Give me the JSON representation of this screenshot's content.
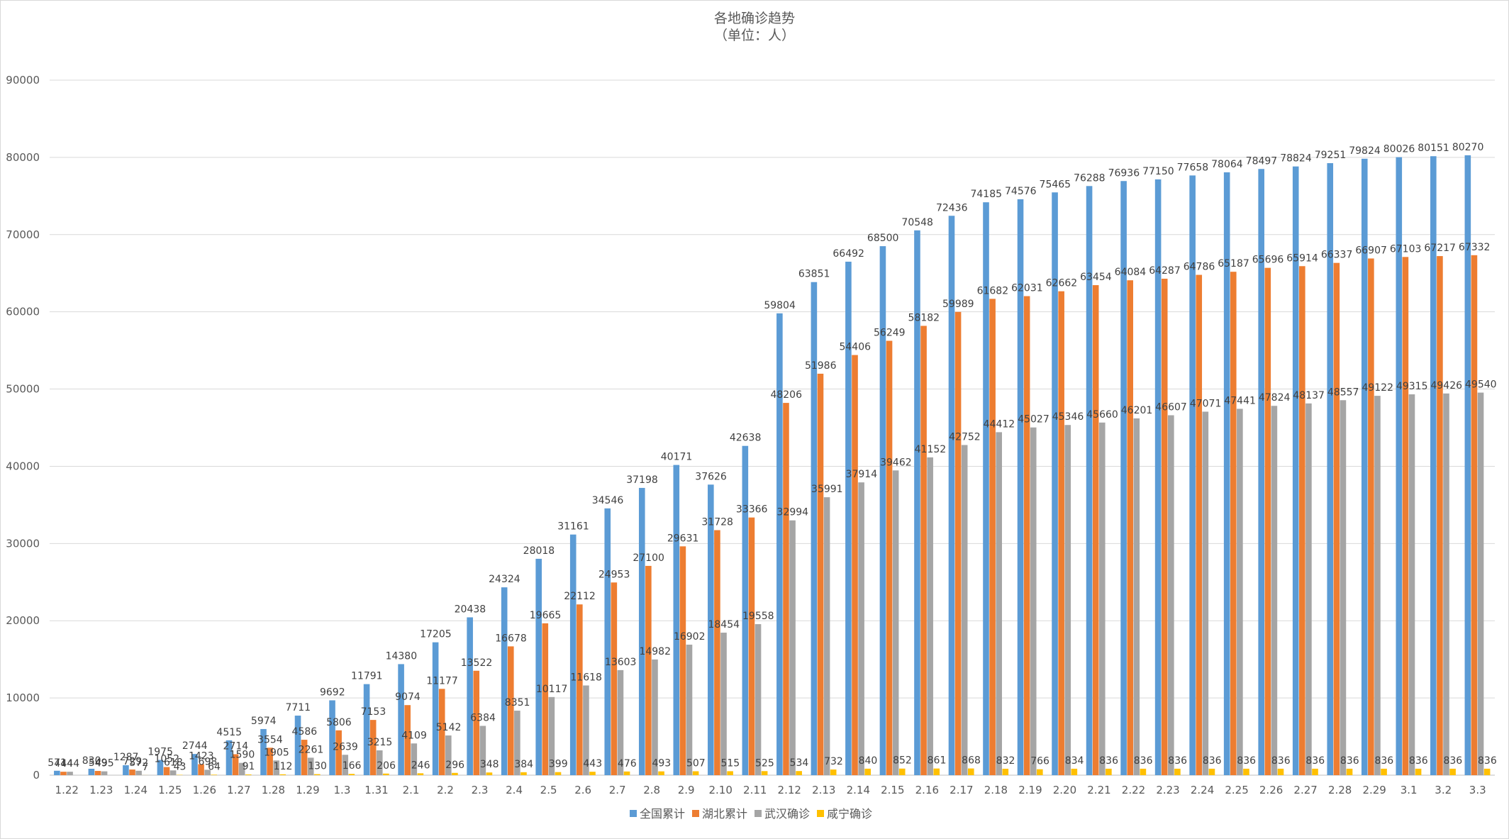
{
  "chart_data": {
    "type": "bar",
    "title": "各地确诊趋势",
    "subtitle": "（单位：人）",
    "ylim": [
      0,
      90000
    ],
    "yticks": [
      0,
      10000,
      20000,
      30000,
      40000,
      50000,
      60000,
      70000,
      80000,
      90000
    ],
    "grid": true,
    "legend_position": "bottom",
    "categories": [
      "1.22",
      "1.23",
      "1.24",
      "1.25",
      "1.26",
      "1.27",
      "1.28",
      "1.29",
      "1.3",
      "1.31",
      "2.1",
      "2.2",
      "2.3",
      "2.4",
      "2.5",
      "2.6",
      "2.7",
      "2.8",
      "2.9",
      "2.10",
      "2.11",
      "2.12",
      "2.13",
      "2.14",
      "2.15",
      "2.16",
      "2.17",
      "2.18",
      "2.19",
      "2.20",
      "2.21",
      "2.22",
      "2.23",
      "2.24",
      "2.25",
      "2.26",
      "2.27",
      "2.28",
      "2.29",
      "3.1",
      "3.2",
      "3.3"
    ],
    "series": [
      {
        "name": "全国累计",
        "color": "#5B9BD5",
        "values": [
          571,
          830,
          1287,
          1975,
          2744,
          4515,
          5974,
          7711,
          9692,
          11791,
          14380,
          17205,
          20438,
          24324,
          28018,
          31161,
          34546,
          37198,
          40171,
          37626,
          42638,
          59804,
          63851,
          66492,
          68500,
          70548,
          72436,
          74185,
          74576,
          75465,
          76288,
          76936,
          77150,
          77658,
          78064,
          78497,
          78824,
          79251,
          79824,
          80026,
          80151,
          80270
        ]
      },
      {
        "name": "湖北累计",
        "color": "#ED7D31",
        "values": [
          444,
          549,
          729,
          1052,
          1423,
          2714,
          3554,
          4586,
          5806,
          7153,
          9074,
          11177,
          13522,
          16678,
          19665,
          22112,
          24953,
          27100,
          29631,
          31728,
          33366,
          48206,
          51986,
          54406,
          56249,
          58182,
          59989,
          61682,
          62031,
          62662,
          63454,
          64084,
          64287,
          64786,
          65187,
          65696,
          65914,
          66337,
          66907,
          67103,
          67217,
          67332
        ]
      },
      {
        "name": "武汉确诊",
        "color": "#A5A5A5",
        "values": [
          444,
          495,
          572,
          618,
          698,
          1590,
          1905,
          2261,
          2639,
          3215,
          4109,
          5142,
          6384,
          8351,
          10117,
          11618,
          13603,
          14982,
          16902,
          18454,
          19558,
          32994,
          35991,
          37914,
          39462,
          41152,
          42752,
          44412,
          45027,
          45346,
          45660,
          46201,
          46607,
          47071,
          47441,
          47824,
          48137,
          48557,
          49122,
          49315,
          49426,
          49540
        ]
      },
      {
        "name": "咸宁确诊",
        "color": "#FFC000",
        "values": [
          0,
          0,
          7,
          43,
          64,
          91,
          112,
          130,
          166,
          206,
          246,
          296,
          348,
          384,
          399,
          443,
          476,
          493,
          507,
          515,
          525,
          534,
          732,
          840,
          852,
          861,
          868,
          832,
          766,
          834,
          836,
          836,
          836,
          836,
          836,
          836,
          836,
          836,
          836,
          836,
          836,
          836
        ]
      }
    ],
    "value_labels": [
      [
        "571",
        "830",
        "1287",
        "1975",
        "2744",
        "4515",
        "5974",
        "7711",
        "9692",
        "11791",
        "14380",
        "17205",
        "20438",
        "24324",
        "28018",
        "31161",
        "34546",
        "37198",
        "40171",
        "37626",
        "42638",
        "59804",
        "63851",
        "66492",
        "68500",
        "70548",
        "72436",
        "74185",
        "74576",
        "75465",
        "76288",
        "76936",
        "77150",
        "77658",
        "78064",
        "78497",
        "78824",
        "79251",
        "79824",
        "80026",
        "80151",
        "80270"
      ],
      [
        "444",
        "549",
        "729",
        "1052",
        "1423",
        "2714",
        "3554",
        "4586",
        "5806",
        "7153",
        "9074",
        "11177",
        "13522",
        "16678",
        "19665",
        "22112",
        "24953",
        "27100",
        "29631",
        "31728",
        "33366",
        "48206",
        "51986",
        "54406",
        "56249",
        "58182",
        "59989",
        "61682",
        "62031",
        "62662",
        "63454",
        "64084",
        "64287",
        "64786",
        "65187",
        "65696",
        "65914",
        "66337",
        "66907",
        "67103",
        "67217",
        "67332"
      ],
      [
        "444",
        "495",
        "572",
        "618",
        "698",
        "1590",
        "1905",
        "2261",
        "2639",
        "3215",
        "4109",
        "5142",
        "6384",
        "8351",
        "10117",
        "11618",
        "13603",
        "14982",
        "16902",
        "18454",
        "19558",
        "32994",
        "35991",
        "37914",
        "39462",
        "41152",
        "42752",
        "44412",
        "45027",
        "45346",
        "45660",
        "46201",
        "46607",
        "47071",
        "47441",
        "47824",
        "48137",
        "48557",
        "49122",
        "49315",
        "49426",
        "49540"
      ],
      [
        "",
        "",
        "7",
        "43",
        "64",
        "91",
        "112",
        "130",
        "166",
        "206",
        "246",
        "296",
        "348",
        "384",
        "399",
        "443",
        "476",
        "493",
        "507",
        "515",
        "525",
        "534",
        "732",
        "840",
        "852",
        "861",
        "868",
        "832",
        "766",
        "834",
        "836",
        "836",
        "836",
        "836",
        "836",
        "836",
        "836",
        "836",
        "836",
        "836",
        "836",
        "836"
      ]
    ]
  }
}
